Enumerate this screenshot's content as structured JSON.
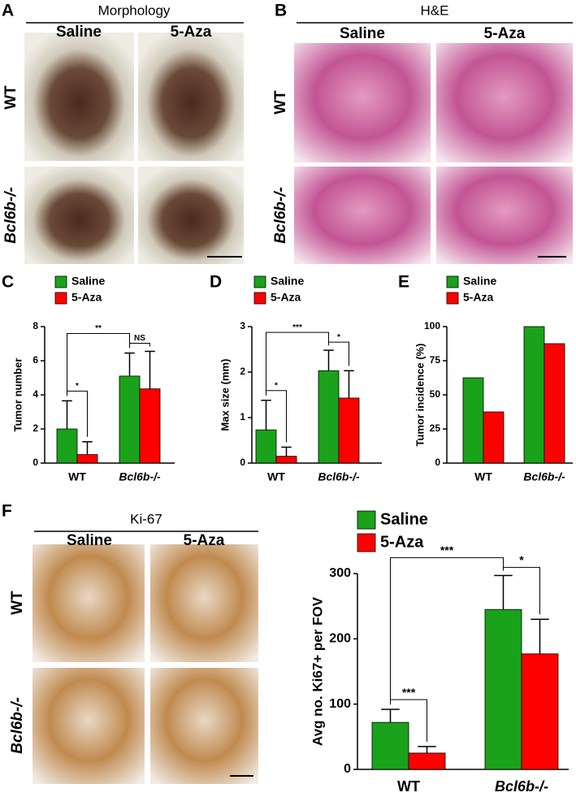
{
  "panels": {
    "A": {
      "letter": "A",
      "title": "Morphology",
      "columns": [
        "Saline",
        "5-Aza"
      ],
      "rows": [
        "WT",
        "Bcl6b-/-"
      ]
    },
    "B": {
      "letter": "B",
      "title": "H&E",
      "columns": [
        "Saline",
        "5-Aza"
      ],
      "rows": [
        "WT",
        "Bcl6b-/-"
      ]
    },
    "C": {
      "letter": "C"
    },
    "D": {
      "letter": "D"
    },
    "E": {
      "letter": "E"
    },
    "F": {
      "letter": "F",
      "title": "Ki-67",
      "columns": [
        "Saline",
        "5-Aza"
      ],
      "rows": [
        "WT",
        "Bcl6b-/-"
      ]
    }
  },
  "chart_data": [
    {
      "type": "bar",
      "y_label": "Tumor number",
      "categories": [
        "WT",
        "Bcl6b-/-"
      ],
      "series": [
        {
          "name": "Saline",
          "color": "#1aa21a",
          "values": [
            2.0,
            5.1
          ],
          "errors": [
            1.65,
            1.35
          ]
        },
        {
          "name": "5-Aza",
          "color": "#ff0000",
          "values": [
            0.5,
            4.35
          ],
          "errors": [
            0.75,
            2.2
          ]
        }
      ],
      "annotations": [
        "*",
        "**",
        "NS"
      ],
      "ylim": [
        0,
        8
      ],
      "yticks": [
        0,
        2,
        4,
        6,
        8
      ]
    },
    {
      "type": "bar",
      "y_label": "Max size (mm)",
      "categories": [
        "WT",
        "Bcl6b-/-"
      ],
      "series": [
        {
          "name": "Saline",
          "color": "#1aa21a",
          "values": [
            0.73,
            2.03
          ],
          "errors": [
            0.65,
            0.45
          ]
        },
        {
          "name": "5-Aza",
          "color": "#ff0000",
          "values": [
            0.15,
            1.43
          ],
          "errors": [
            0.2,
            0.6
          ]
        }
      ],
      "annotations": [
        "*",
        "***",
        "*"
      ],
      "ylim": [
        0,
        3
      ],
      "yticks": [
        0,
        1,
        2,
        3
      ]
    },
    {
      "type": "bar",
      "y_label": "Tumor incidence (%)",
      "categories": [
        "WT",
        "Bcl6b-/-"
      ],
      "series": [
        {
          "name": "Saline",
          "color": "#1aa21a",
          "values": [
            62.5,
            100
          ]
        },
        {
          "name": "5-Aza",
          "color": "#ff0000",
          "values": [
            37.5,
            87.5
          ]
        }
      ],
      "ylim": [
        0,
        100
      ],
      "yticks": [
        0,
        25,
        50,
        75,
        100
      ]
    },
    {
      "type": "bar",
      "y_label": "Avg no. Ki67+ per FOV",
      "categories": [
        "WT",
        "Bcl6b-/-"
      ],
      "series": [
        {
          "name": "Saline",
          "color": "#1aa21a",
          "values": [
            72,
            245
          ],
          "errors": [
            20,
            52
          ]
        },
        {
          "name": "5-Aza",
          "color": "#ff0000",
          "values": [
            25,
            177
          ],
          "errors": [
            10,
            53
          ]
        }
      ],
      "annotations": [
        "***",
        "***",
        "*"
      ],
      "ylim": [
        0,
        300
      ],
      "yticks": [
        0,
        100,
        200,
        300
      ]
    }
  ]
}
